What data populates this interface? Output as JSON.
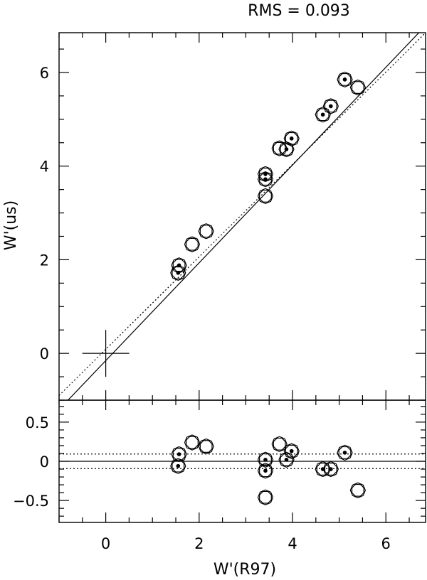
{
  "chart_data": {
    "type": "scatter",
    "title": "RMS = 0.093",
    "xlabel": "W'(R97)",
    "xlim": [
      -1,
      6.85
    ],
    "x_ticks": [
      "0",
      "2",
      "4",
      "6"
    ],
    "panels": [
      {
        "name": "main",
        "ylabel": "W'(us)",
        "ylim": [
          -1,
          6.85
        ],
        "y_ticks": [
          "0",
          "2",
          "4",
          "6"
        ],
        "cross_marker": {
          "x": 0,
          "y": 0
        },
        "lines": [
          {
            "style": "solid",
            "points": [
              [
                -1,
                -1.2
              ],
              [
                6.85,
                7.0
              ]
            ]
          },
          {
            "style": "dotted",
            "points": [
              [
                -1,
                -0.9
              ],
              [
                6.85,
                6.85
              ]
            ]
          }
        ],
        "points": [
          {
            "x": 1.57,
            "y": 1.88,
            "dot": true
          },
          {
            "x": 1.55,
            "y": 1.72,
            "dot": true
          },
          {
            "x": 1.85,
            "y": 2.33,
            "dot": false
          },
          {
            "x": 2.15,
            "y": 2.61,
            "dot": false
          },
          {
            "x": 3.42,
            "y": 3.83,
            "dot": true
          },
          {
            "x": 3.42,
            "y": 3.72,
            "dot": true
          },
          {
            "x": 3.42,
            "y": 3.36,
            "dot": false
          },
          {
            "x": 3.72,
            "y": 4.38,
            "dot": false
          },
          {
            "x": 3.87,
            "y": 4.36,
            "dot": true
          },
          {
            "x": 3.98,
            "y": 4.59,
            "dot": true
          },
          {
            "x": 4.65,
            "y": 5.1,
            "dot": true
          },
          {
            "x": 4.82,
            "y": 5.28,
            "dot": true
          },
          {
            "x": 5.12,
            "y": 5.85,
            "dot": true
          },
          {
            "x": 5.4,
            "y": 5.68,
            "dot": false
          }
        ]
      },
      {
        "name": "residuals",
        "ylim": [
          -0.78,
          0.78
        ],
        "y_ticks": [
          "0.5",
          "0",
          "−0.5"
        ],
        "lines": [
          {
            "style": "solid",
            "y": 0
          },
          {
            "style": "dotted",
            "y": 0.093
          },
          {
            "style": "dotted",
            "y": -0.093
          }
        ],
        "points": [
          {
            "x": 1.57,
            "y": 0.09,
            "dot": true
          },
          {
            "x": 1.55,
            "y": -0.06,
            "dot": true
          },
          {
            "x": 1.85,
            "y": 0.24,
            "dot": false
          },
          {
            "x": 2.15,
            "y": 0.19,
            "dot": false
          },
          {
            "x": 3.42,
            "y": 0.02,
            "dot": true
          },
          {
            "x": 3.42,
            "y": -0.12,
            "dot": true
          },
          {
            "x": 3.42,
            "y": -0.46,
            "dot": false
          },
          {
            "x": 3.72,
            "y": 0.22,
            "dot": false
          },
          {
            "x": 3.87,
            "y": 0.02,
            "dot": true
          },
          {
            "x": 3.98,
            "y": 0.13,
            "dot": true
          },
          {
            "x": 4.65,
            "y": -0.1,
            "dot": true
          },
          {
            "x": 4.82,
            "y": -0.1,
            "dot": true
          },
          {
            "x": 5.12,
            "y": 0.11,
            "dot": true
          },
          {
            "x": 5.4,
            "y": -0.37,
            "dot": false
          }
        ]
      }
    ]
  }
}
